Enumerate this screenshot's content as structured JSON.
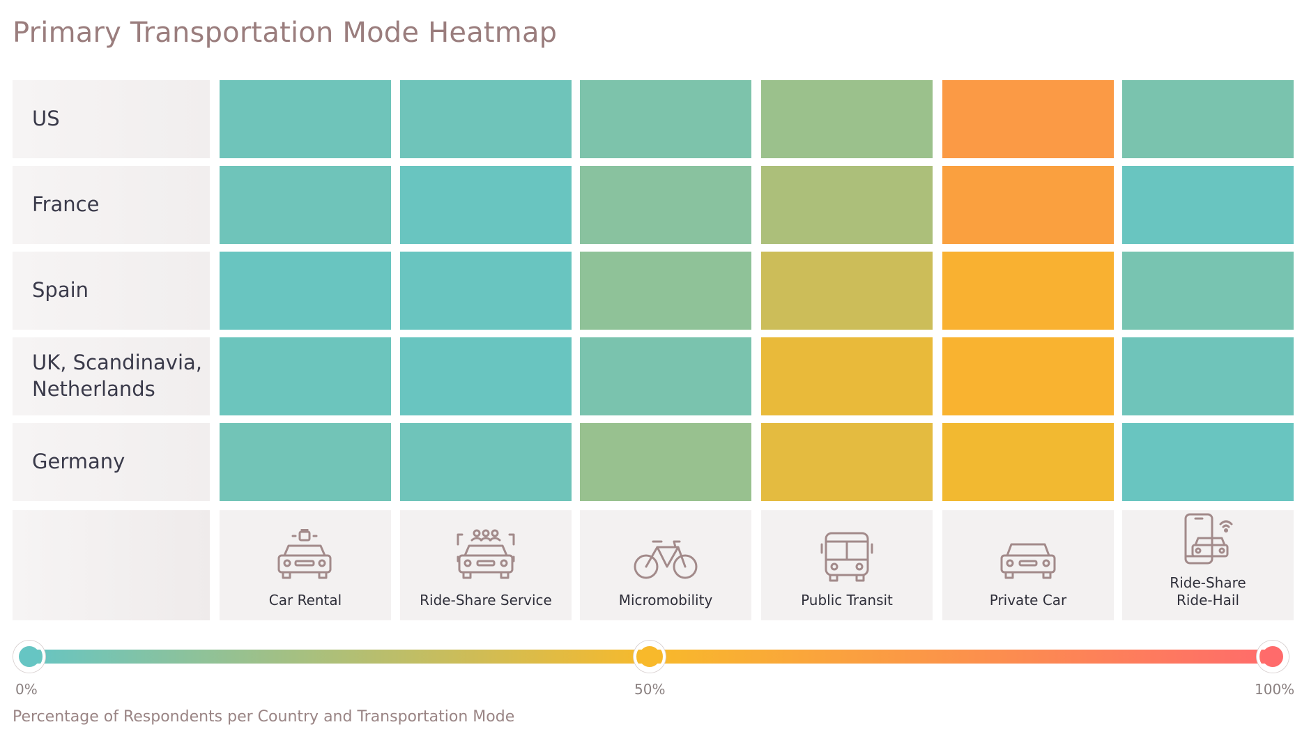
{
  "title": "Primary Transportation Mode Heatmap",
  "chart_data": {
    "type": "heatmap",
    "title": "Primary Transportation Mode Heatmap",
    "rows": [
      "US",
      "France",
      "Spain",
      "UK, Scandinavia,\nNetherlands",
      "Germany"
    ],
    "columns": [
      {
        "label": "Car Rental",
        "icon": "car-rental-icon"
      },
      {
        "label": "Ride-Share Service",
        "icon": "ride-share-service-icon"
      },
      {
        "label": "Micromobility",
        "icon": "bicycle-icon"
      },
      {
        "label": "Public Transit",
        "icon": "bus-icon"
      },
      {
        "label": "Private Car",
        "icon": "car-icon"
      },
      {
        "label": "Ride-Share\nRide-Hail",
        "icon": "phone-car-icon"
      }
    ],
    "values": [
      [
        3,
        3,
        8,
        18,
        70,
        7
      ],
      [
        3,
        1,
        12,
        24,
        66,
        1
      ],
      [
        1,
        1,
        14,
        35,
        55,
        6
      ],
      [
        2,
        1,
        7,
        45,
        54,
        3
      ],
      [
        4,
        3,
        17,
        43,
        48,
        1
      ]
    ],
    "scale": {
      "min": 0,
      "mid": 50,
      "max": 100,
      "min_label": "0%",
      "mid_label": "50%",
      "max_label": "100%"
    },
    "colors": {
      "low": "#66c5c3",
      "mid": "#f8b92b",
      "high": "#ff6b6b"
    },
    "legend_caption": "Percentage of Respondents per Country and Transportation Mode"
  }
}
